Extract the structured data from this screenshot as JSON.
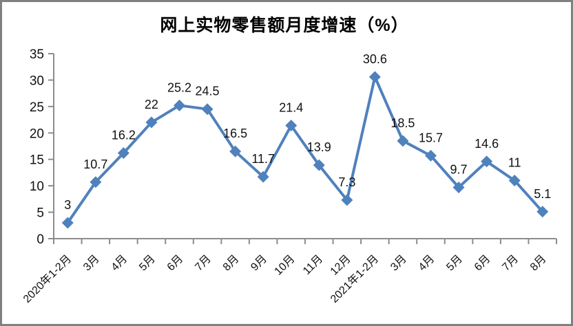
{
  "chart_data": {
    "type": "line",
    "title": "网上实物零售额月度增速（%）",
    "categories": [
      "2020年1-2月",
      "3月",
      "4月",
      "5月",
      "6月",
      "7月",
      "8月",
      "9月",
      "10月",
      "11月",
      "12月",
      "2021年1-2月",
      "3月",
      "4月",
      "5月",
      "6月",
      "7月",
      "8月"
    ],
    "values": [
      3,
      10.7,
      16.2,
      22,
      25.2,
      24.5,
      16.5,
      11.7,
      21.4,
      13.9,
      7.3,
      30.6,
      18.5,
      15.7,
      9.7,
      14.6,
      11,
      5.1
    ],
    "data_labels": [
      "3",
      "10.7",
      "16.2",
      "22",
      "25.2",
      "24.5",
      "16.5",
      "11.7",
      "21.4",
      "13.9",
      "7.3",
      "30.6",
      "18.5",
      "15.7",
      "9.7",
      "14.6",
      "11",
      "5.1"
    ],
    "xlabel": "",
    "ylabel": "",
    "ylim": [
      0,
      35
    ],
    "y_ticks": [
      0,
      5,
      10,
      15,
      20,
      25,
      30,
      35
    ],
    "grid": false,
    "legend": "none",
    "marker": "diamond",
    "colors": {
      "line": "#4F81BD",
      "marker": "#4F81BD",
      "axis": "#8C8C8C",
      "label_text": "#111111",
      "title_text": "#000000",
      "frame_border": "#808080",
      "background": "#FFFFFF"
    }
  }
}
